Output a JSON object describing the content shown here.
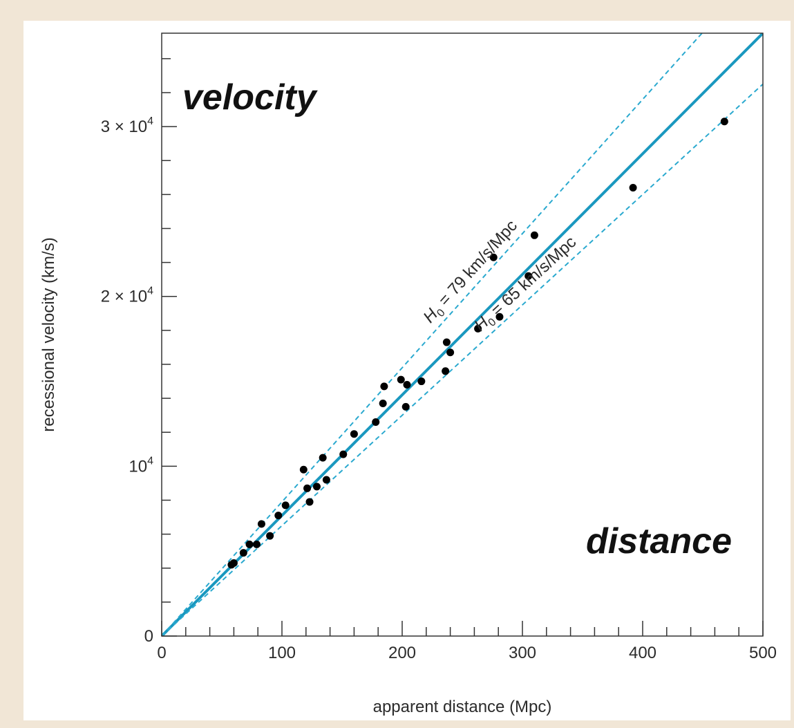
{
  "chart_data": {
    "type": "scatter",
    "xlabel": "apparent distance (Mpc)",
    "ylabel": "recessional velocity (km/s)",
    "xlim": [
      0,
      500
    ],
    "ylim": [
      0,
      35500
    ],
    "x_ticks": [
      {
        "value": 0,
        "label": "0"
      },
      {
        "value": 100,
        "label": "100"
      },
      {
        "value": 200,
        "label": "200"
      },
      {
        "value": 300,
        "label": "300"
      },
      {
        "value": 400,
        "label": "400"
      },
      {
        "value": 500,
        "label": "500"
      }
    ],
    "y_ticks": [
      {
        "value": 0,
        "label": "0",
        "mantissa": "",
        "exponent": ""
      },
      {
        "value": 10000,
        "label": "",
        "mantissa": "10",
        "exponent": "4"
      },
      {
        "value": 20000,
        "label": "",
        "mantissa": "2 × 10",
        "exponent": "4"
      },
      {
        "value": 30000,
        "label": "",
        "mantissa": "3 × 10",
        "exponent": "4"
      }
    ],
    "x_minor_step": 20,
    "y_minor_step": 2000,
    "grid": false,
    "overlay_labels": {
      "top_left": "velocity",
      "bottom_right": "distance"
    },
    "lines": [
      {
        "id": "fit",
        "slope": 71,
        "style": "solid",
        "color": "#1a98bf"
      },
      {
        "id": "upper",
        "slope": 79,
        "style": "dashed",
        "color": "#2aa9cf",
        "label": "= 79 km/s/Mpc",
        "label_x": 265
      },
      {
        "id": "lower",
        "slope": 65,
        "style": "dashed",
        "color": "#2aa9cf",
        "label": "= 65 km/s/Mpc",
        "label_x": 310
      }
    ],
    "h0_symbol": {
      "base": "H",
      "sub": "0"
    },
    "points": [
      [
        58,
        4200
      ],
      [
        60,
        4300
      ],
      [
        68,
        4900
      ],
      [
        73,
        5400
      ],
      [
        79,
        5400
      ],
      [
        83,
        6600
      ],
      [
        90,
        5900
      ],
      [
        97,
        7100
      ],
      [
        103,
        7700
      ],
      [
        118,
        9800
      ],
      [
        121,
        8700
      ],
      [
        123,
        7900
      ],
      [
        129,
        8800
      ],
      [
        134,
        10500
      ],
      [
        137,
        9200
      ],
      [
        151,
        10700
      ],
      [
        160,
        11900
      ],
      [
        178,
        12600
      ],
      [
        184,
        13700
      ],
      [
        185,
        14700
      ],
      [
        199,
        15100
      ],
      [
        203,
        13500
      ],
      [
        204,
        14800
      ],
      [
        216,
        15000
      ],
      [
        236,
        15600
      ],
      [
        237,
        17300
      ],
      [
        240,
        16700
      ],
      [
        263,
        18100
      ],
      [
        276,
        22300
      ],
      [
        281,
        18800
      ],
      [
        305,
        21200
      ],
      [
        310,
        23600
      ],
      [
        392,
        26400
      ],
      [
        468,
        30300
      ]
    ],
    "colors": {
      "points": "#000000",
      "fit": "#1a98bf",
      "dashed": "#2aa9cf",
      "axis": "#333333"
    }
  }
}
